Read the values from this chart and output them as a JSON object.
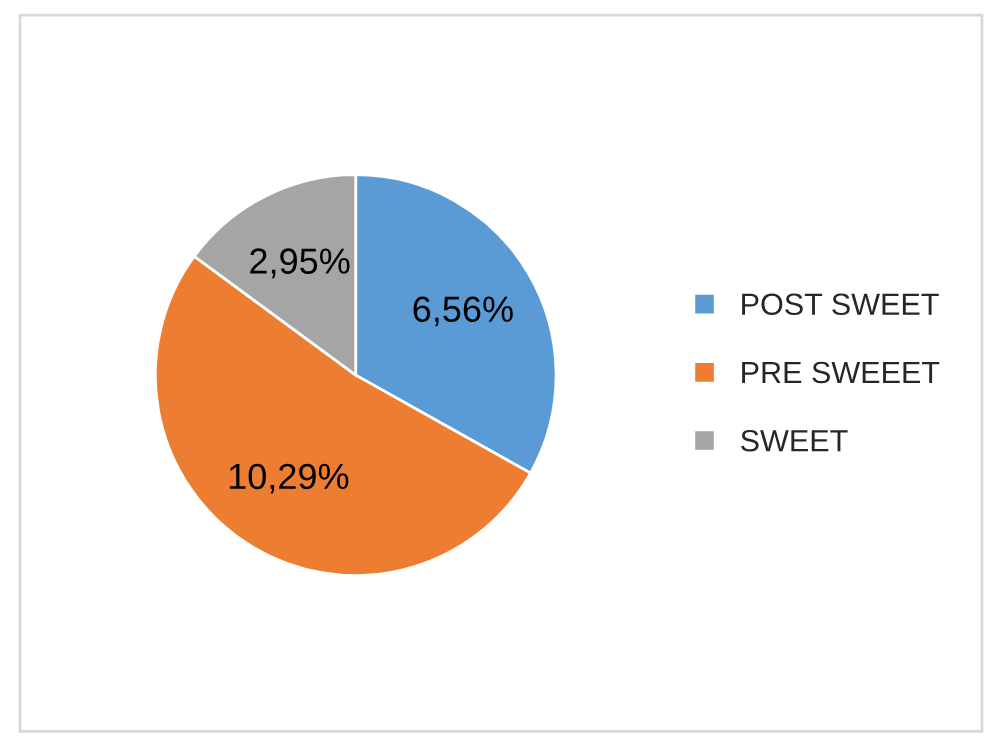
{
  "chart_data": {
    "type": "pie",
    "categories": [
      "POST SWEET",
      "PRE SWEEET",
      "SWEET"
    ],
    "values": [
      6.56,
      10.29,
      2.95
    ],
    "value_labels": [
      "6,56%",
      "10,29%",
      "2,95%"
    ],
    "colors": [
      "#5b9bd5",
      "#ed7d31",
      "#a5a5a5"
    ],
    "legend": "right"
  }
}
